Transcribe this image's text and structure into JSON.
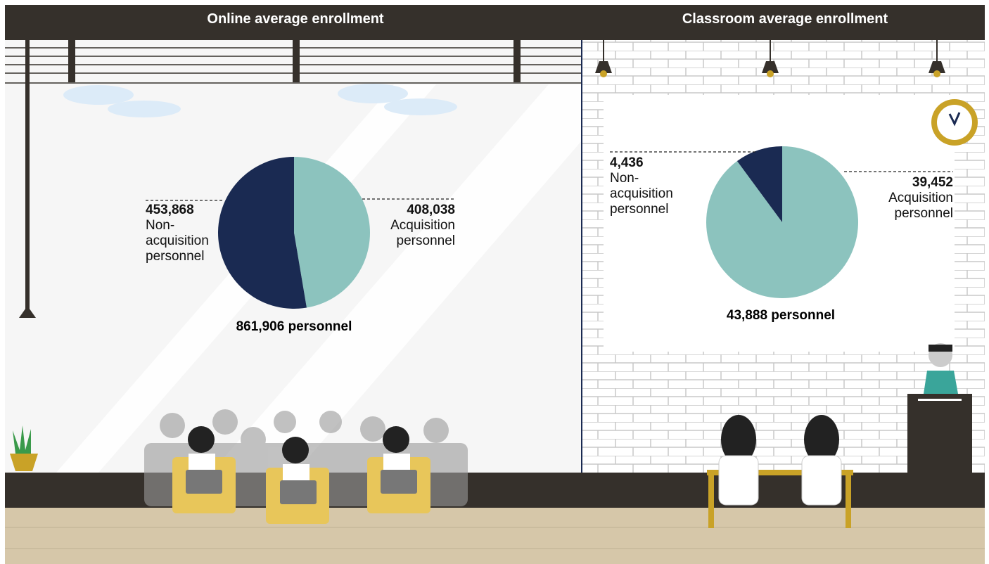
{
  "chart_data": [
    {
      "type": "pie",
      "title": "Online average enrollment",
      "categories": [
        "Acquisition personnel",
        "Non-acquisition personnel"
      ],
      "values": [
        408038,
        453868
      ],
      "value_labels": [
        "408,038",
        "453,868"
      ],
      "colors": [
        "#8cc3be",
        "#1a2a52"
      ],
      "total_label": "861,906 personnel"
    },
    {
      "type": "pie",
      "title": "Classroom average enrollment",
      "categories": [
        "Acquisition personnel",
        "Non-acquisition personnel"
      ],
      "values": [
        39452,
        4436
      ],
      "value_labels": [
        "39,452",
        "4,436"
      ],
      "colors": [
        "#8cc3be",
        "#1a2a52"
      ],
      "total_label": "43,888 personnel"
    }
  ]
}
